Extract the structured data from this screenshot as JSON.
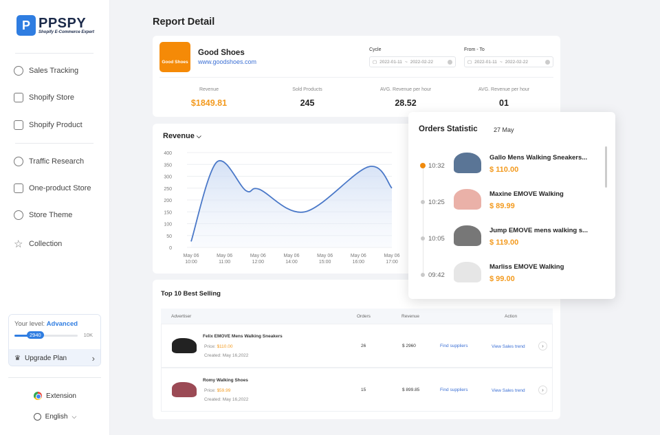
{
  "brand": {
    "name": "PPSPY",
    "tagline": "Shopify E-Commerce Expert"
  },
  "sidebar": {
    "items": [
      {
        "label": "Sales Tracking",
        "icon": "tracking-icon"
      },
      {
        "label": "Shopify Store",
        "icon": "store-icon"
      },
      {
        "label": "Shopify Product",
        "icon": "product-icon"
      },
      {
        "label": "Traffic Research",
        "icon": "pie-chart-icon"
      },
      {
        "label": "One-product Store",
        "icon": "home-icon"
      },
      {
        "label": "Store Theme",
        "icon": "palette-icon"
      },
      {
        "label": "Collection",
        "icon": "star-icon"
      }
    ],
    "level": {
      "label": "Your level:",
      "value": "Advanced",
      "progress": 2940,
      "max_label": "10K",
      "max": 10000,
      "progress_label": "2940"
    },
    "upgrade_label": "Upgrade Plan",
    "extension_label": "Extension",
    "language": "English"
  },
  "page": {
    "title": "Report Detail"
  },
  "store": {
    "logo_text": "Good Shoes",
    "name": "Good Shoes",
    "url": "www.goodshoes.com",
    "cycle": {
      "label": "Cycle",
      "start": "2022-01-11",
      "end": "2022-02-22"
    },
    "range": {
      "label": "From - To",
      "start": "2022-01-11",
      "end": "2022-02-22"
    },
    "stats": [
      {
        "label": "Revenue",
        "value": "$1849.81"
      },
      {
        "label": "Sold Products",
        "value": "245"
      },
      {
        "label": "AVG. Revenue per hour",
        "value": "28.52"
      },
      {
        "label": "AVG. Revenue per hour",
        "value": "01"
      }
    ]
  },
  "chart_data": {
    "type": "area",
    "title": "Revenue",
    "ylim": [
      0,
      400
    ],
    "yticks": [
      0,
      50,
      100,
      150,
      200,
      250,
      300,
      350,
      400
    ],
    "categories": [
      "May 06 10:00",
      "May 06 11:00",
      "May 06 12:00",
      "May 06 14:00",
      "May 06 15:00",
      "May 06 16:00",
      "May 06 17:00"
    ],
    "points": [
      {
        "x": "10:00",
        "y": 25
      },
      {
        "x": "10:46",
        "y": 360
      },
      {
        "x": "11:38",
        "y": 240
      },
      {
        "x": "12:05",
        "y": 245
      },
      {
        "x": "14:24",
        "y": 150
      },
      {
        "x": "16:18",
        "y": 340
      },
      {
        "x": "17:00",
        "y": 250
      }
    ],
    "grid": true,
    "color": "#4a78c8"
  },
  "best": {
    "title": "Top 10 Best Selling",
    "headers": {
      "advertiser": "Advertiser",
      "orders": "Orders",
      "revenue": "Revenue",
      "action": "Action"
    },
    "price_label": "Price:",
    "created_label": "Created:",
    "find_label": "Find suppliers",
    "trend_label": "View Sales trend",
    "rows": [
      {
        "name": "Felix EMOVE Mens Walking Sneakers",
        "price": "$110.00",
        "created": "May 16,2022",
        "orders": "26",
        "revenue": "$ 2960",
        "color": "#222"
      },
      {
        "name": "Romy Walking Shoes",
        "price": "$59.99",
        "created": "May 16,2022",
        "orders": "15",
        "revenue": "$ 899.85",
        "color": "#9b4a55"
      }
    ]
  },
  "orders": {
    "title": "Orders Statistic",
    "date": "27 May",
    "items": [
      {
        "time": "10:32",
        "name": "Gallo Mens Walking Sneakers...",
        "price": "$ 110.00",
        "active": true,
        "color": "#5a7596"
      },
      {
        "time": "10:25",
        "name": "Maxine EMOVE Walking",
        "price": "$ 89.99",
        "active": false,
        "color": "#eab1a8"
      },
      {
        "time": "10:05",
        "name": "Jump EMOVE mens walking s...",
        "price": "$ 119.00",
        "active": false,
        "color": "#777"
      },
      {
        "time": "09:42",
        "name": "Marliss EMOVE Walking",
        "price": "$ 99.00",
        "active": false,
        "color": "#e6e6e6"
      }
    ]
  },
  "colors": {
    "accent": "#2f7de1",
    "orange": "#f39a1e",
    "link": "#3b6fd4"
  }
}
